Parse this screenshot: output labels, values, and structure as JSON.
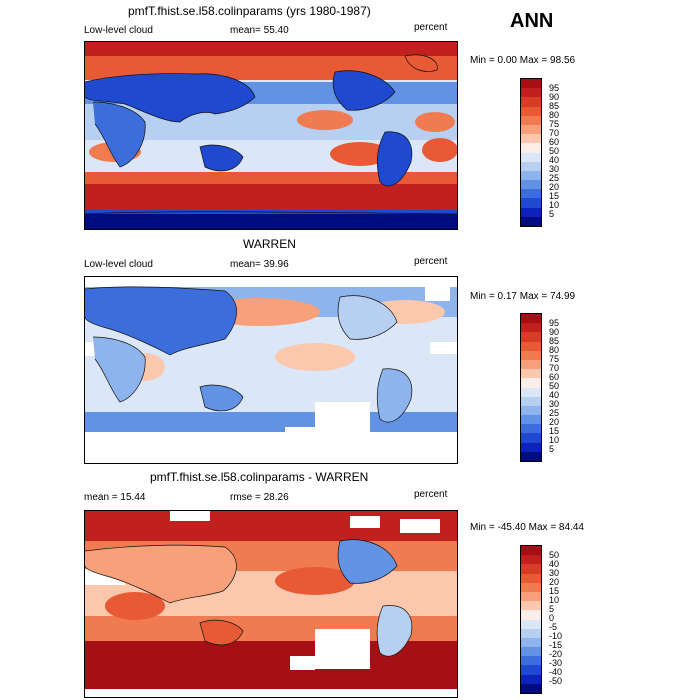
{
  "season": "ANN",
  "panels": [
    {
      "title": "pmfT.fhist.se.l58.colinparams (yrs 1980-1987)",
      "left": "Low-level cloud",
      "mid": "mean=  55.40",
      "units": "percent",
      "minmax": "Min =   0.00 Max =  98.56",
      "bar_labels": [
        "95",
        "90",
        "85",
        "80",
        "75",
        "70",
        "60",
        "50",
        "40",
        "30",
        "25",
        "20",
        "15",
        "10",
        "5"
      ]
    },
    {
      "title": "WARREN",
      "left": "Low-level cloud",
      "mid": "mean=  39.96",
      "units": "percent",
      "minmax": "Min =   0.17 Max =  74.99",
      "bar_labels": [
        "95",
        "90",
        "85",
        "80",
        "75",
        "70",
        "60",
        "50",
        "40",
        "30",
        "25",
        "20",
        "15",
        "10",
        "5"
      ]
    },
    {
      "title": "pmfT.fhist.se.l58.colinparams - WARREN",
      "left": "mean =  15.44",
      "mid": "rmse =  28.26",
      "units": "percent",
      "minmax": "Min = -45.40 Max =  84.44",
      "bar_labels": [
        "50",
        "40",
        "30",
        "20",
        "15",
        "10",
        "5",
        "0",
        "-5",
        "-10",
        "-15",
        "-20",
        "-30",
        "-40",
        "-50"
      ]
    }
  ],
  "colors": {
    "scale": [
      "#a50f15",
      "#c0211f",
      "#d63d26",
      "#e85a35",
      "#f07b51",
      "#f7a07a",
      "#fbc8ae",
      "#fbeee8",
      "#dbe7f7",
      "#b7d0f2",
      "#8db4ec",
      "#6292e4",
      "#3c6edb",
      "#1f49ce",
      "#0c22b8",
      "#000c7e"
    ]
  }
}
